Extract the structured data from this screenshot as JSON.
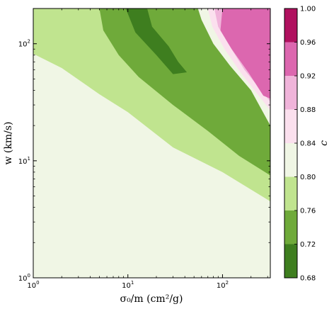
{
  "chart_data": {
    "type": "heatmap",
    "subtype": "filled-contour",
    "title": "",
    "xlabel": "σ₀/m (cm²/g)",
    "ylabel": "w (km/s)",
    "x_scale": "log",
    "y_scale": "log",
    "xlim": [
      1,
      320
    ],
    "ylim": [
      1,
      200
    ],
    "x_ticks": [
      {
        "value": 1,
        "base": "10",
        "exp": "0"
      },
      {
        "value": 10,
        "base": "10",
        "exp": "1"
      },
      {
        "value": 100,
        "base": "10",
        "exp": "2"
      }
    ],
    "y_ticks": [
      {
        "value": 1,
        "base": "10",
        "exp": "0"
      },
      {
        "value": 10,
        "base": "10",
        "exp": "1"
      },
      {
        "value": 100,
        "base": "10",
        "exp": "2"
      }
    ],
    "colorbar": {
      "label": "c",
      "levels": [
        "0.68",
        "0.72",
        "0.76",
        "0.80",
        "0.84",
        "0.88",
        "0.92",
        "0.96",
        "1.00"
      ],
      "colors": [
        "#3e7e1f",
        "#6faa3a",
        "#c0e48f",
        "#f0f6e5",
        "#fbe0ee",
        "#f0b4da",
        "#dc67af",
        "#b0115f"
      ]
    },
    "regions": [
      {
        "level_range": [
          0.76,
          0.8
        ],
        "color": "#c0e48f",
        "boundary": [
          [
            1,
            200
          ],
          [
            1,
            82
          ],
          [
            2,
            62
          ],
          [
            5,
            37
          ],
          [
            10,
            26
          ],
          [
            30,
            13
          ],
          [
            100,
            8
          ],
          [
            320,
            4.5
          ],
          [
            320,
            200
          ]
        ]
      },
      {
        "level_range": [
          0.72,
          0.76
        ],
        "color": "#6faa3a",
        "boundary": [
          [
            5,
            200
          ],
          [
            5.5,
            130
          ],
          [
            8,
            80
          ],
          [
            13,
            52
          ],
          [
            30,
            30
          ],
          [
            70,
            18
          ],
          [
            150,
            11
          ],
          [
            320,
            7.5
          ],
          [
            320,
            110
          ],
          [
            130,
            100
          ],
          [
            85,
            140
          ],
          [
            60,
            200
          ]
        ]
      },
      {
        "level_range": [
          0.68,
          0.72
        ],
        "color": "#3e7e1f",
        "boundary": [
          [
            9.5,
            200
          ],
          [
            12,
            125
          ],
          [
            20,
            80
          ],
          [
            30,
            55
          ],
          [
            42,
            57
          ],
          [
            34,
            70
          ],
          [
            27,
            95
          ],
          [
            18,
            140
          ],
          [
            16,
            200
          ]
        ]
      },
      {
        "level_range": [
          0.8,
          0.84
        ],
        "color": "#f0f6e5",
        "boundary": [
          [
            55,
            200
          ],
          [
            60,
            160
          ],
          [
            80,
            100
          ],
          [
            120,
            65
          ],
          [
            200,
            40
          ],
          [
            320,
            20
          ],
          [
            320,
            200
          ]
        ]
      },
      {
        "level_range": [
          0.84,
          0.88
        ],
        "color": "#fbe0ee",
        "boundary": [
          [
            70,
            200
          ],
          [
            78,
            140
          ],
          [
            105,
            90
          ],
          [
            160,
            55
          ],
          [
            320,
            27
          ],
          [
            320,
            200
          ]
        ]
      },
      {
        "level_range": [
          0.88,
          0.92
        ],
        "color": "#f0b4da",
        "boundary": [
          [
            82,
            200
          ],
          [
            90,
            140
          ],
          [
            115,
            100
          ],
          [
            170,
            60
          ],
          [
            320,
            32
          ],
          [
            320,
            200
          ]
        ]
      },
      {
        "level_range": [
          0.92,
          0.96
        ],
        "color": "#dc67af",
        "boundary": [
          [
            100,
            200
          ],
          [
            95,
            130
          ],
          [
            125,
            90
          ],
          [
            190,
            56
          ],
          [
            270,
            36
          ],
          [
            320,
            34
          ],
          [
            320,
            200
          ]
        ]
      }
    ]
  }
}
